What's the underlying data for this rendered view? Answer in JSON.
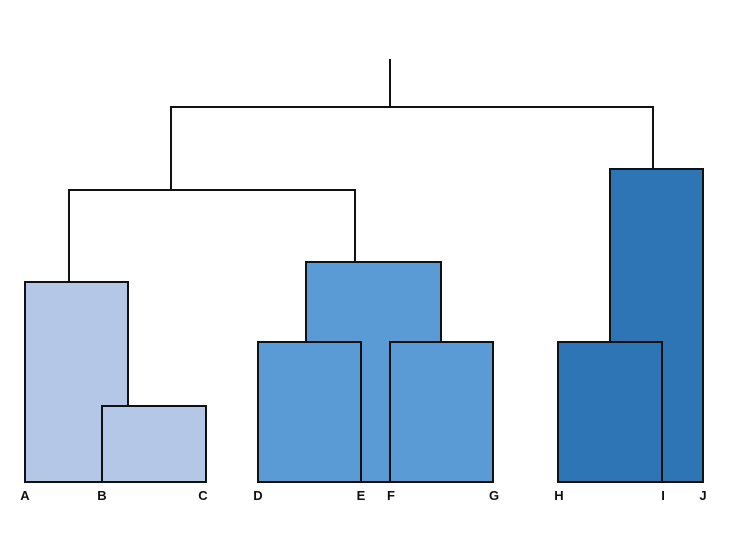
{
  "diagram": {
    "type": "dendrogram",
    "leaves": [
      "A",
      "B",
      "C",
      "D",
      "E",
      "F",
      "G",
      "H",
      "I",
      "J"
    ],
    "colors": {
      "cluster_1": "#b4c7e7",
      "cluster_2": "#5b9bd5",
      "cluster_3": "#2e75b6",
      "lines": "#111111"
    },
    "clusters": [
      {
        "name": "cluster_1",
        "members": [
          "A",
          "B",
          "C"
        ],
        "color_key": "cluster_1"
      },
      {
        "name": "cluster_2",
        "members": [
          "D",
          "E",
          "F",
          "G"
        ],
        "color_key": "cluster_2"
      },
      {
        "name": "cluster_3",
        "members": [
          "H",
          "I",
          "J"
        ],
        "color_key": "cluster_3"
      }
    ],
    "merges": [
      {
        "id": "BC",
        "children": [
          "B",
          "C"
        ]
      },
      {
        "id": "ABC",
        "children": [
          "A",
          "BC"
        ]
      },
      {
        "id": "DE",
        "children": [
          "D",
          "E"
        ]
      },
      {
        "id": "FG",
        "children": [
          "F",
          "G"
        ]
      },
      {
        "id": "DEFG",
        "children": [
          "DE",
          "FG"
        ]
      },
      {
        "id": "HI",
        "children": [
          "H",
          "I"
        ]
      },
      {
        "id": "HIJ",
        "children": [
          "HI",
          "J"
        ]
      },
      {
        "id": "ABCDEFG",
        "children": [
          "ABC",
          "DEFG"
        ]
      },
      {
        "id": "ROOT",
        "children": [
          "ABCDEFG",
          "HIJ"
        ]
      }
    ]
  }
}
